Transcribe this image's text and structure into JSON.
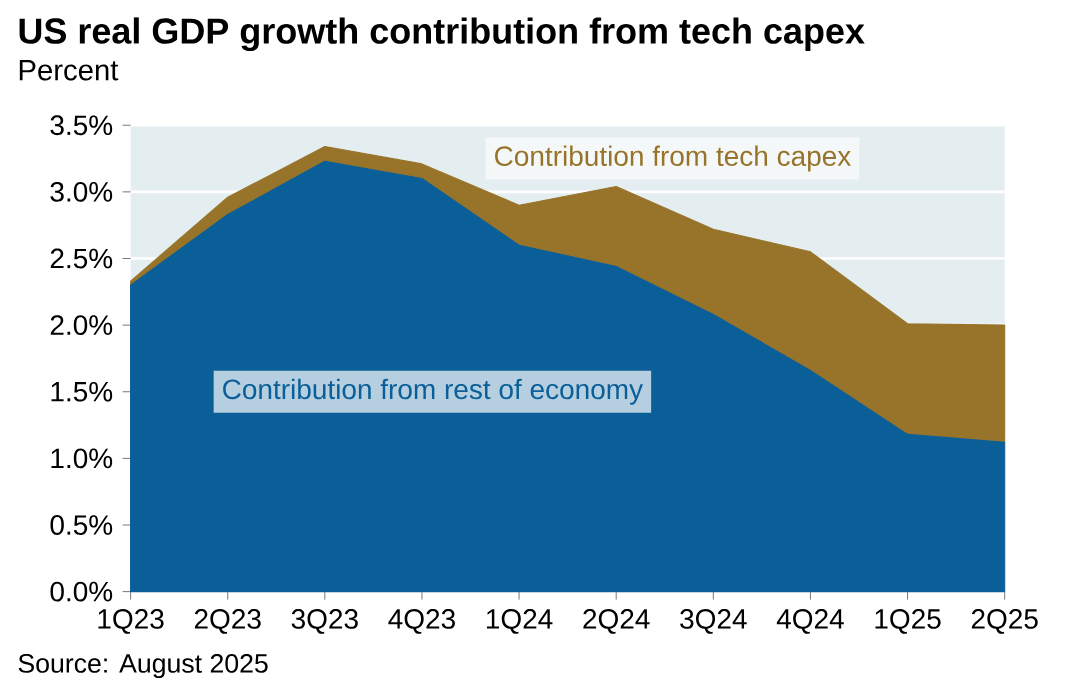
{
  "chart_data": {
    "type": "area",
    "title": "US real GDP growth contribution from tech capex",
    "subtitle": "Percent",
    "stacked": true,
    "grid": "y",
    "categories": [
      "1Q23",
      "2Q23",
      "3Q23",
      "4Q23",
      "1Q24",
      "2Q24",
      "3Q24",
      "4Q24",
      "1Q25",
      "2Q25"
    ],
    "series": [
      {
        "name": "Contribution from rest of economy",
        "color": "#0b5f98",
        "values": [
          2.3,
          2.83,
          3.23,
          3.1,
          2.6,
          2.44,
          2.08,
          1.66,
          1.18,
          1.12
        ]
      },
      {
        "name": "Contribution from tech capex",
        "color": "#98742a",
        "values": [
          0.03,
          0.13,
          0.11,
          0.11,
          0.3,
          0.6,
          0.64,
          0.89,
          0.83,
          0.88
        ]
      }
    ],
    "ylim": [
      0,
      3.5
    ],
    "yticks": [
      {
        "value": 0,
        "label": "0.0%"
      },
      {
        "value": 0.5,
        "label": "0.5%"
      },
      {
        "value": 1,
        "label": "1.0%"
      },
      {
        "value": 1.5,
        "label": "1.5%"
      },
      {
        "value": 2,
        "label": "2.0%"
      },
      {
        "value": 2.5,
        "label": "2.5%"
      },
      {
        "value": 3,
        "label": "3.0%"
      },
      {
        "value": 3.5,
        "label": "3.5%"
      }
    ],
    "annotations": [
      "Source: August 2025"
    ]
  }
}
